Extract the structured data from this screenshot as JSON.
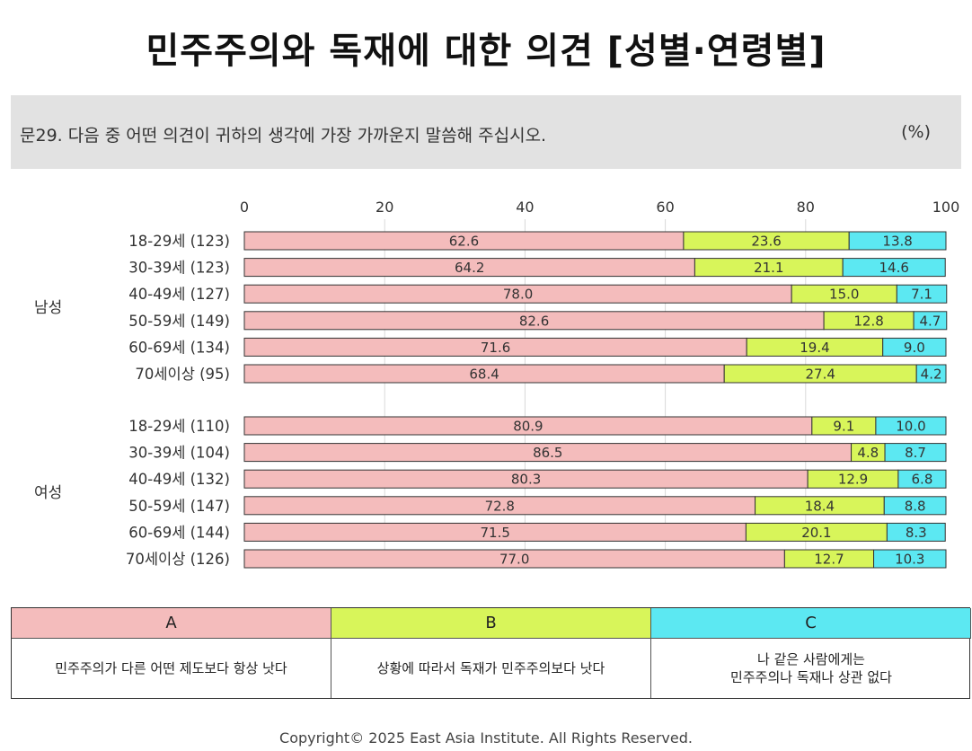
{
  "title": "민주주의와 독재에 대한 의견 [성별·연령별]",
  "question": "문29. 다음 중 어떤 의견이 귀하의 생각에 가장 가까운지 말씀해 주십시오.",
  "unit": "(%)",
  "copyright": "Copyright© 2025 East Asia Institute. All Rights Reserved.",
  "colors": {
    "A": "#f4bcbc",
    "B": "#d8f55a",
    "C": "#5ce8f2"
  },
  "legend": {
    "A": {
      "label": "A",
      "desc": "민주주의가 다른 어떤 제도보다 항상 낫다"
    },
    "B": {
      "label": "B",
      "desc": "상황에 따라서 독재가 민주주의보다 낫다"
    },
    "C": {
      "label": "C",
      "desc_line1": "나 같은 사람에게는",
      "desc_line2": "민주주의나 독재나 상관 없다"
    }
  },
  "chart_data": {
    "type": "bar",
    "orientation": "horizontal",
    "stacked": true,
    "xlim": [
      0,
      100
    ],
    "x_ticks": [
      "0",
      "20",
      "40",
      "60",
      "80",
      "100"
    ],
    "series_names": [
      "A",
      "B",
      "C"
    ],
    "groups": [
      {
        "name": "남성",
        "rows": [
          {
            "label": "18-29세 (123)",
            "values": [
              62.6,
              23.6,
              13.8
            ],
            "texts": [
              "62.6",
              "23.6",
              "13.8"
            ]
          },
          {
            "label": "30-39세 (123)",
            "values": [
              64.2,
              21.1,
              14.6
            ],
            "texts": [
              "64.2",
              "21.1",
              "14.6"
            ]
          },
          {
            "label": "40-49세 (127)",
            "values": [
              78.0,
              15.0,
              7.1
            ],
            "texts": [
              "78.0",
              "15.0",
              "7.1"
            ]
          },
          {
            "label": "50-59세 (149)",
            "values": [
              82.6,
              12.8,
              4.7
            ],
            "texts": [
              "82.6",
              "12.8",
              "4.7"
            ]
          },
          {
            "label": "60-69세 (134)",
            "values": [
              71.6,
              19.4,
              9.0
            ],
            "texts": [
              "71.6",
              "19.4",
              "9.0"
            ]
          },
          {
            "label": "70세이상 (95)",
            "values": [
              68.4,
              27.4,
              4.2
            ],
            "texts": [
              "68.4",
              "27.4",
              "4.2"
            ]
          }
        ]
      },
      {
        "name": "여성",
        "rows": [
          {
            "label": "18-29세 (110)",
            "values": [
              80.9,
              9.1,
              10.0
            ],
            "texts": [
              "80.9",
              "9.1",
              "10.0"
            ]
          },
          {
            "label": "30-39세 (104)",
            "values": [
              86.5,
              4.8,
              8.7
            ],
            "texts": [
              "86.5",
              "4.8",
              "8.7"
            ]
          },
          {
            "label": "40-49세 (132)",
            "values": [
              80.3,
              12.9,
              6.8
            ],
            "texts": [
              "80.3",
              "12.9",
              "6.8"
            ]
          },
          {
            "label": "50-59세 (147)",
            "values": [
              72.8,
              18.4,
              8.8
            ],
            "texts": [
              "72.8",
              "18.4",
              "8.8"
            ]
          },
          {
            "label": "60-69세 (144)",
            "values": [
              71.5,
              20.1,
              8.3
            ],
            "texts": [
              "71.5",
              "20.1",
              "8.3"
            ]
          },
          {
            "label": "70세이상 (126)",
            "values": [
              77.0,
              12.7,
              10.3
            ],
            "texts": [
              "77.0",
              "12.7",
              "10.3"
            ]
          }
        ]
      }
    ]
  }
}
